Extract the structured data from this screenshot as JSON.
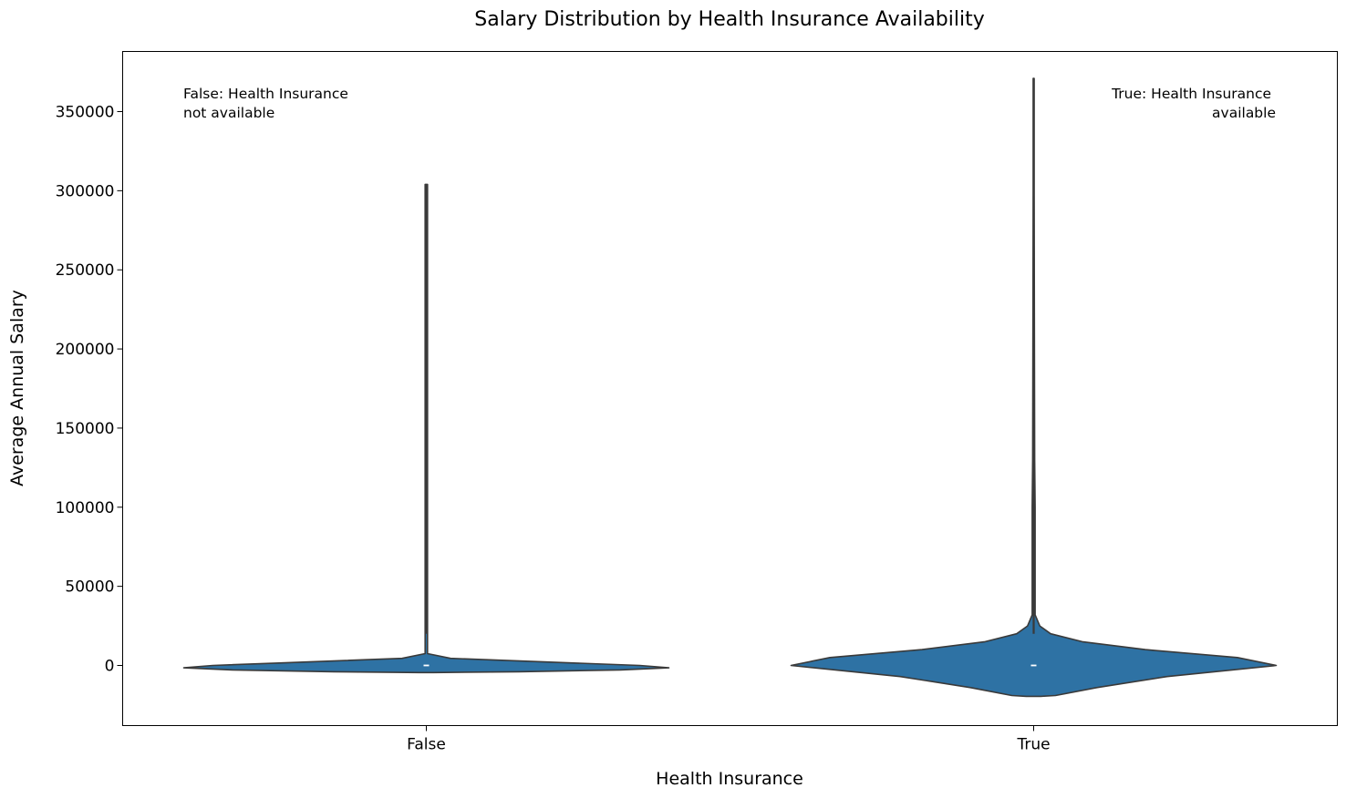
{
  "chart_data": {
    "type": "violin",
    "title": "Salary Distribution by Health Insurance Availability",
    "xlabel": "Health Insurance",
    "ylabel": "Average Annual Salary",
    "ylim": [
      -38000,
      388000
    ],
    "yticks": [
      0,
      50000,
      100000,
      150000,
      200000,
      250000,
      300000,
      350000
    ],
    "categories": [
      "False",
      "True"
    ],
    "color": "#2e72a4",
    "annotations": [
      {
        "lines": [
          "False: Health Insurance",
          "not available"
        ],
        "align": "left"
      },
      {
        "lines": [
          "True: Health Insurance",
          "available"
        ],
        "align": "right"
      }
    ],
    "series": [
      {
        "category": "False",
        "median": 0,
        "whisker_max": 304000,
        "profile": [
          [
            -4500,
            0.03
          ],
          [
            -4000,
            0.38
          ],
          [
            -2800,
            0.8
          ],
          [
            -1500,
            1.0
          ],
          [
            0,
            0.88
          ],
          [
            1500,
            0.62
          ],
          [
            4500,
            0.1
          ],
          [
            7500,
            0.005
          ],
          [
            304000,
            0.005
          ]
        ]
      },
      {
        "category": "True",
        "median": 0,
        "whisker_max": 371000,
        "profile": [
          [
            -19500,
            0.03
          ],
          [
            -19000,
            0.09
          ],
          [
            -14000,
            0.26
          ],
          [
            -7000,
            0.55
          ],
          [
            0,
            1.0
          ],
          [
            5000,
            0.84
          ],
          [
            10000,
            0.46
          ],
          [
            15000,
            0.2
          ],
          [
            20000,
            0.07
          ],
          [
            25000,
            0.025
          ],
          [
            32000,
            0.006
          ],
          [
            100000,
            0.006
          ],
          [
            130000,
            0.004
          ],
          [
            300000,
            0.002
          ],
          [
            371000,
            0.002
          ]
        ]
      }
    ]
  }
}
